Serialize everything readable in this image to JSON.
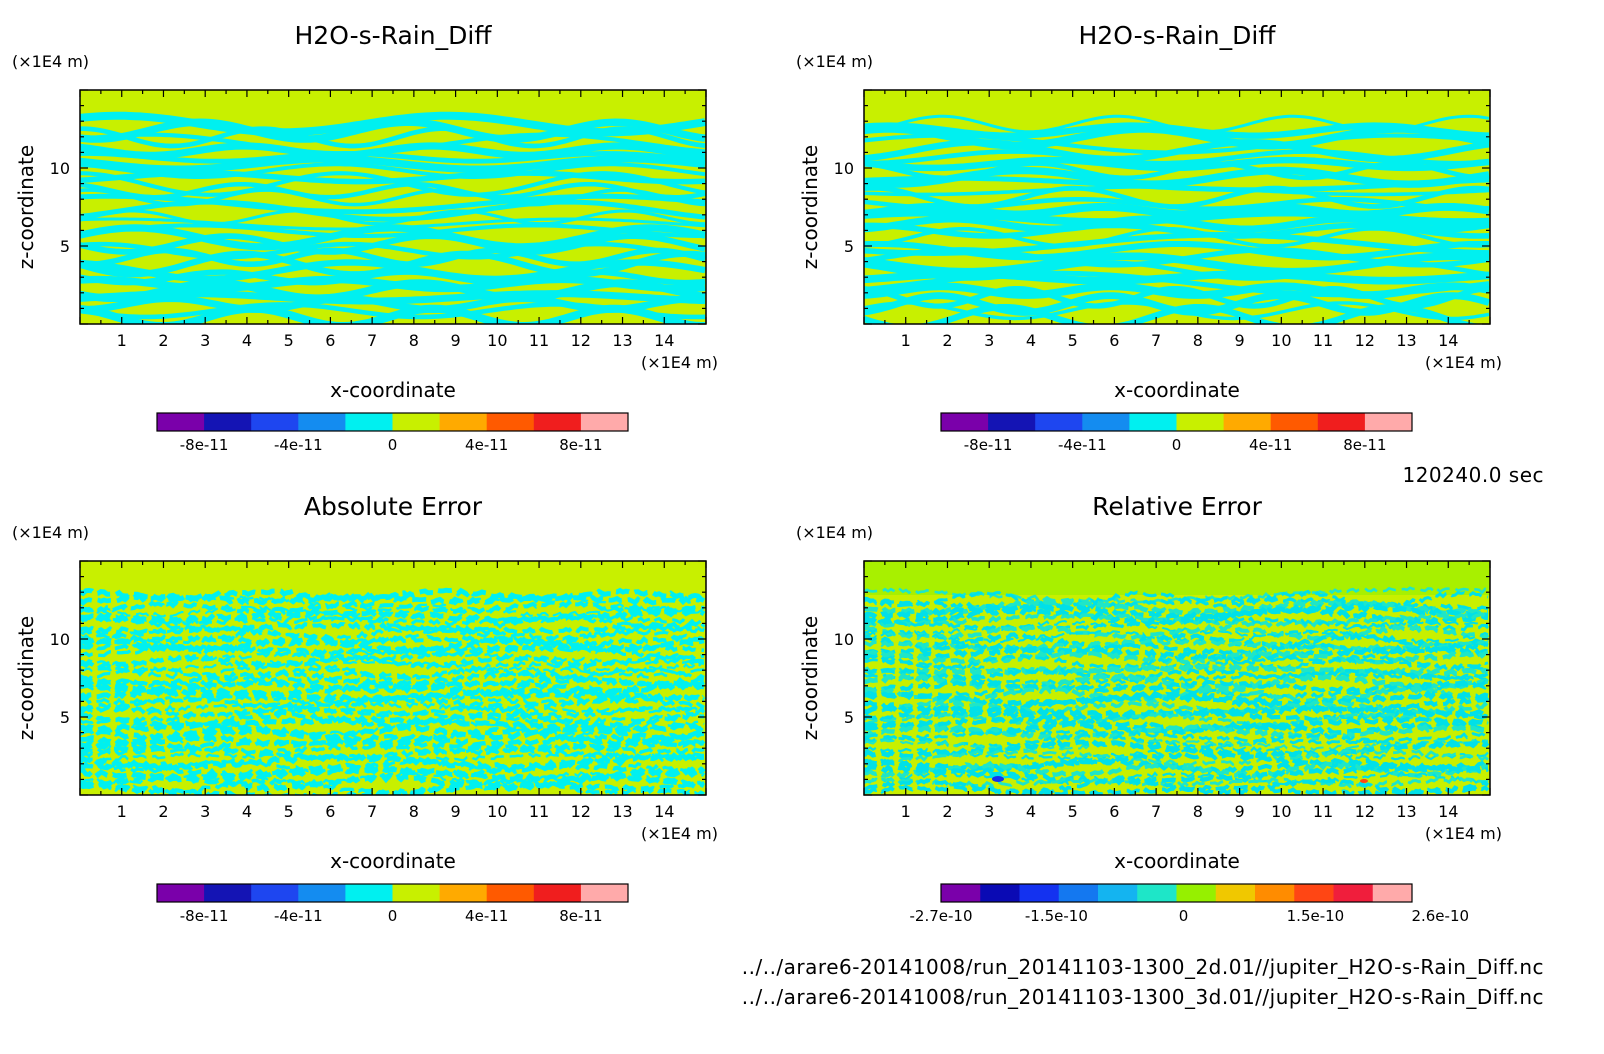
{
  "chart_data": [
    {
      "type": "heatmap",
      "title": "H2O-s-Rain_Diff",
      "xlabel": "x-coordinate",
      "ylabel": "z-coordinate",
      "xunit": "(×1E4 m)",
      "yunit": "(×1E4 m)",
      "xlim": [
        0,
        15
      ],
      "ylim": [
        0,
        15
      ],
      "xticks": [
        "1",
        "2",
        "3",
        "4",
        "5",
        "6",
        "7",
        "8",
        "9",
        "10",
        "11",
        "12",
        "13",
        "14"
      ],
      "yticks": [
        "5",
        "10"
      ],
      "colorbar": {
        "colors": [
          "#7a00aa",
          "#1414b4",
          "#1e46f0",
          "#148cf0",
          "#00f0f0",
          "#c8f000",
          "#ffaa00",
          "#ff5a00",
          "#f01e1e",
          "#ffaaaa"
        ],
        "tick_labels": [
          "-8e-11",
          "-4e-11",
          "0",
          "4e-11",
          "8e-11"
        ]
      }
    },
    {
      "type": "heatmap",
      "title": "H2O-s-Rain_Diff",
      "xlabel": "x-coordinate",
      "ylabel": "z-coordinate",
      "xunit": "(×1E4 m)",
      "yunit": "(×1E4 m)",
      "xlim": [
        0,
        15
      ],
      "ylim": [
        0,
        15
      ],
      "xticks": [
        "1",
        "2",
        "3",
        "4",
        "5",
        "6",
        "7",
        "8",
        "9",
        "10",
        "11",
        "12",
        "13",
        "14"
      ],
      "yticks": [
        "5",
        "10"
      ],
      "colorbar": {
        "colors": [
          "#7a00aa",
          "#1414b4",
          "#1e46f0",
          "#148cf0",
          "#00f0f0",
          "#c8f000",
          "#ffaa00",
          "#ff5a00",
          "#f01e1e",
          "#ffaaaa"
        ],
        "tick_labels": [
          "-8e-11",
          "-4e-11",
          "0",
          "4e-11",
          "8e-11"
        ]
      }
    },
    {
      "type": "heatmap",
      "title": "Absolute Error",
      "xlabel": "x-coordinate",
      "ylabel": "z-coordinate",
      "xunit": "(×1E4 m)",
      "yunit": "(×1E4 m)",
      "xlim": [
        0,
        15
      ],
      "ylim": [
        0,
        15
      ],
      "xticks": [
        "1",
        "2",
        "3",
        "4",
        "5",
        "6",
        "7",
        "8",
        "9",
        "10",
        "11",
        "12",
        "13",
        "14"
      ],
      "yticks": [
        "5",
        "10"
      ],
      "colorbar": {
        "colors": [
          "#7a00aa",
          "#1414b4",
          "#1e46f0",
          "#148cf0",
          "#00f0f0",
          "#c8f000",
          "#ffaa00",
          "#ff5a00",
          "#f01e1e",
          "#ffaaaa"
        ],
        "tick_labels": [
          "-8e-11",
          "-4e-11",
          "0",
          "4e-11",
          "8e-11"
        ]
      }
    },
    {
      "type": "heatmap",
      "title": "Relative Error",
      "xlabel": "x-coordinate",
      "ylabel": "z-coordinate",
      "xunit": "(×1E4 m)",
      "yunit": "(×1E4 m)",
      "xlim": [
        0,
        15
      ],
      "ylim": [
        0,
        15
      ],
      "xticks": [
        "1",
        "2",
        "3",
        "4",
        "5",
        "6",
        "7",
        "8",
        "9",
        "10",
        "11",
        "12",
        "13",
        "14"
      ],
      "yticks": [
        "5",
        "10"
      ],
      "colorbar": {
        "colors": [
          "#7a00aa",
          "#0a0ab4",
          "#1432f0",
          "#1478f0",
          "#14b4f0",
          "#1ee6c8",
          "#96f000",
          "#f0c800",
          "#ff8c00",
          "#ff4614",
          "#f01e3c",
          "#ffaaaa"
        ],
        "tick_labels": [
          "-2.7e-10",
          "-1.5e-10",
          "0",
          "1.5e-10",
          "2.6e-10"
        ]
      }
    }
  ],
  "time_label": "120240.0 sec",
  "file_paths": [
    "../../arare6-20141008/run_20141103-1300_2d.01//jupiter_H2O-s-Rain_Diff.nc",
    "../../arare6-20141008/run_20141103-1300_3d.01//jupiter_H2O-s-Rain_Diff.nc"
  ]
}
